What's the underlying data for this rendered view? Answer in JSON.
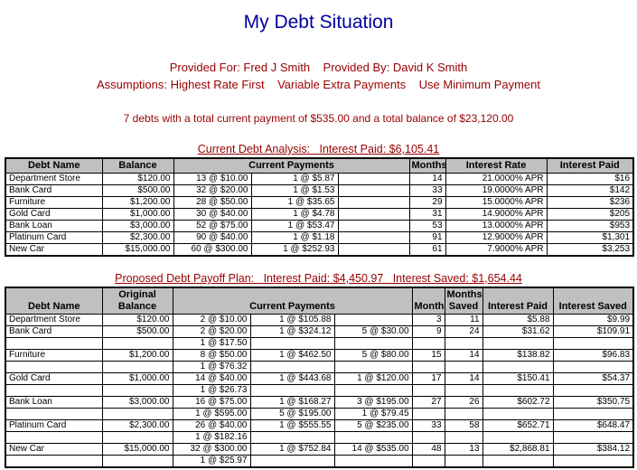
{
  "colors": {
    "title_navy": "#0000A0",
    "accent_red": "#990000",
    "table_header_bg": "#C0C0C0",
    "table_border": "#000000"
  },
  "header": {
    "title": "My Debt Situation",
    "provided_line": "Provided For: Fred J Smith    Provided By: David K Smith",
    "assumptions_line": "Assumptions: Highest Rate First    Variable Extra Payments    Use Minimum Payment",
    "summary_line": "7 debts with a total current payment of $535.00 and a total balance of $23,120.00"
  },
  "current_table": {
    "section_title": "Current Debt Analysis:   Interest Paid: $6,105.41",
    "headers": {
      "debt_name": "Debt Name",
      "balance": "Balance",
      "current_payments": "Current Payments",
      "months": "Months",
      "interest_rate": "Interest Rate",
      "interest_paid": "Interest Paid"
    },
    "rows": [
      {
        "name": "Department Store",
        "balance": "$120.00",
        "pay1": "13 @ $10.00",
        "pay2": "1 @ $5.87",
        "pay3": "",
        "months": "14",
        "rate": "21.0000% APR",
        "paid": "$16"
      },
      {
        "name": "Bank Card",
        "balance": "$500.00",
        "pay1": "32 @ $20.00",
        "pay2": "1 @ $1.53",
        "pay3": "",
        "months": "33",
        "rate": "19.0000% APR",
        "paid": "$142"
      },
      {
        "name": "Furniture",
        "balance": "$1,200.00",
        "pay1": "28 @ $50.00",
        "pay2": "1 @ $35.65",
        "pay3": "",
        "months": "29",
        "rate": "15.0000% APR",
        "paid": "$236"
      },
      {
        "name": "Gold Card",
        "balance": "$1,000.00",
        "pay1": "30 @ $40.00",
        "pay2": "1 @ $4.78",
        "pay3": "",
        "months": "31",
        "rate": "14.9000% APR",
        "paid": "$205"
      },
      {
        "name": "Bank Loan",
        "balance": "$3,000.00",
        "pay1": "52 @ $75.00",
        "pay2": "1 @ $53.47",
        "pay3": "",
        "months": "53",
        "rate": "13.0000% APR",
        "paid": "$953"
      },
      {
        "name": "Platinum Card",
        "balance": "$2,300.00",
        "pay1": "90 @ $40.00",
        "pay2": "1 @ $1.18",
        "pay3": "",
        "months": "91",
        "rate": "12.9000% APR",
        "paid": "$1,301"
      },
      {
        "name": "New Car",
        "balance": "$15,000.00",
        "pay1": "60 @ $300.00",
        "pay2": "1 @ $252.93",
        "pay3": "",
        "months": "61",
        "rate": "7.9000% APR",
        "paid": "$3,253"
      }
    ]
  },
  "proposed_table": {
    "section_title": "Proposed Debt Payoff Plan:   Interest Paid: $4,450.97   Interest Saved: $1,654.44",
    "headers": {
      "debt_name": "Debt Name",
      "original_balance": "Original Balance",
      "current_payments": "Current Payments",
      "months": "Months",
      "months_saved": "Months Saved",
      "interest_paid": "Interest Paid",
      "interest_saved": "Interest Saved"
    },
    "rows": [
      {
        "name": "Department Store",
        "balance": "$120.00",
        "pay1": "2 @ $10.00",
        "pay2": "1 @ $105.88",
        "pay3": "",
        "months": "3",
        "saved_months": "11",
        "paid": "$5.88",
        "saved": "$9.99"
      },
      {
        "name": "Bank Card",
        "balance": "$500.00",
        "pay1": "2 @ $20.00",
        "pay2": "1 @ $324.12",
        "pay3": "5 @ $30.00",
        "months": "9",
        "saved_months": "24",
        "paid": "$31.62",
        "saved": "$109.91"
      },
      {
        "name": "",
        "balance": "",
        "pay1": "1 @ $17.50",
        "pay2": "",
        "pay3": "",
        "months": "",
        "saved_months": "",
        "paid": "",
        "saved": ""
      },
      {
        "name": "Furniture",
        "balance": "$1,200.00",
        "pay1": "8 @ $50.00",
        "pay2": "1 @ $462.50",
        "pay3": "5 @ $80.00",
        "months": "15",
        "saved_months": "14",
        "paid": "$138.82",
        "saved": "$96.83"
      },
      {
        "name": "",
        "balance": "",
        "pay1": "1 @ $76.32",
        "pay2": "",
        "pay3": "",
        "months": "",
        "saved_months": "",
        "paid": "",
        "saved": ""
      },
      {
        "name": "Gold Card",
        "balance": "$1,000.00",
        "pay1": "14 @ $40.00",
        "pay2": "1 @ $443.68",
        "pay3": "1 @ $120.00",
        "months": "17",
        "saved_months": "14",
        "paid": "$150.41",
        "saved": "$54.37"
      },
      {
        "name": "",
        "balance": "",
        "pay1": "1 @ $26.73",
        "pay2": "",
        "pay3": "",
        "months": "",
        "saved_months": "",
        "paid": "",
        "saved": ""
      },
      {
        "name": "Bank Loan",
        "balance": "$3,000.00",
        "pay1": "16 @ $75.00",
        "pay2": "1 @ $168.27",
        "pay3": "3 @ $195.00",
        "months": "27",
        "saved_months": "26",
        "paid": "$602.72",
        "saved": "$350.75"
      },
      {
        "name": "",
        "balance": "",
        "pay1": "1 @ $595.00",
        "pay2": "5 @ $195.00",
        "pay3": "1 @ $79.45",
        "months": "",
        "saved_months": "",
        "paid": "",
        "saved": ""
      },
      {
        "name": "Platinum Card",
        "balance": "$2,300.00",
        "pay1": "26 @ $40.00",
        "pay2": "1 @ $555.55",
        "pay3": "5 @ $235.00",
        "months": "33",
        "saved_months": "58",
        "paid": "$652.71",
        "saved": "$648.47"
      },
      {
        "name": "",
        "balance": "",
        "pay1": "1 @ $182.16",
        "pay2": "",
        "pay3": "",
        "months": "",
        "saved_months": "",
        "paid": "",
        "saved": ""
      },
      {
        "name": "New Car",
        "balance": "$15,000.00",
        "pay1": "32 @ $300.00",
        "pay2": "1 @ $752.84",
        "pay3": "14 @ $535.00",
        "months": "48",
        "saved_months": "13",
        "paid": "$2,868.81",
        "saved": "$384.12"
      },
      {
        "name": "",
        "balance": "",
        "pay1": "1 @ $25.97",
        "pay2": "",
        "pay3": "",
        "months": "",
        "saved_months": "",
        "paid": "",
        "saved": ""
      }
    ]
  }
}
